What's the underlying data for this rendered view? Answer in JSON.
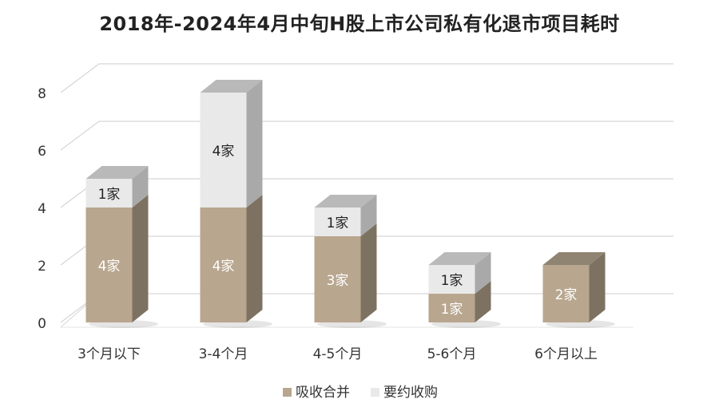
{
  "chart_data": {
    "type": "bar",
    "stacked": true,
    "three_d": true,
    "title": "2018年-2024年4月中旬H股上市公司私有化退市项目耗时",
    "categories": [
      "3个月以下",
      "3-4个月",
      "4-5个月",
      "5-6个月",
      "6个月以上"
    ],
    "series": [
      {
        "name": "吸收合并",
        "values": [
          4,
          4,
          3,
          1,
          2
        ],
        "labels": [
          "4家",
          "4家",
          "3家",
          "1家",
          "2家"
        ],
        "color": "#b8a68e"
      },
      {
        "name": "要约收购",
        "values": [
          1,
          4,
          1,
          1,
          0
        ],
        "labels": [
          "1家",
          "4家",
          "1家",
          "1家",
          ""
        ],
        "color": "#e9e9e9"
      }
    ],
    "yticks": [
      "0",
      "2",
      "4",
      "6",
      "8"
    ],
    "ylim": [
      0,
      8
    ],
    "grid": true,
    "legend": "bottom"
  }
}
